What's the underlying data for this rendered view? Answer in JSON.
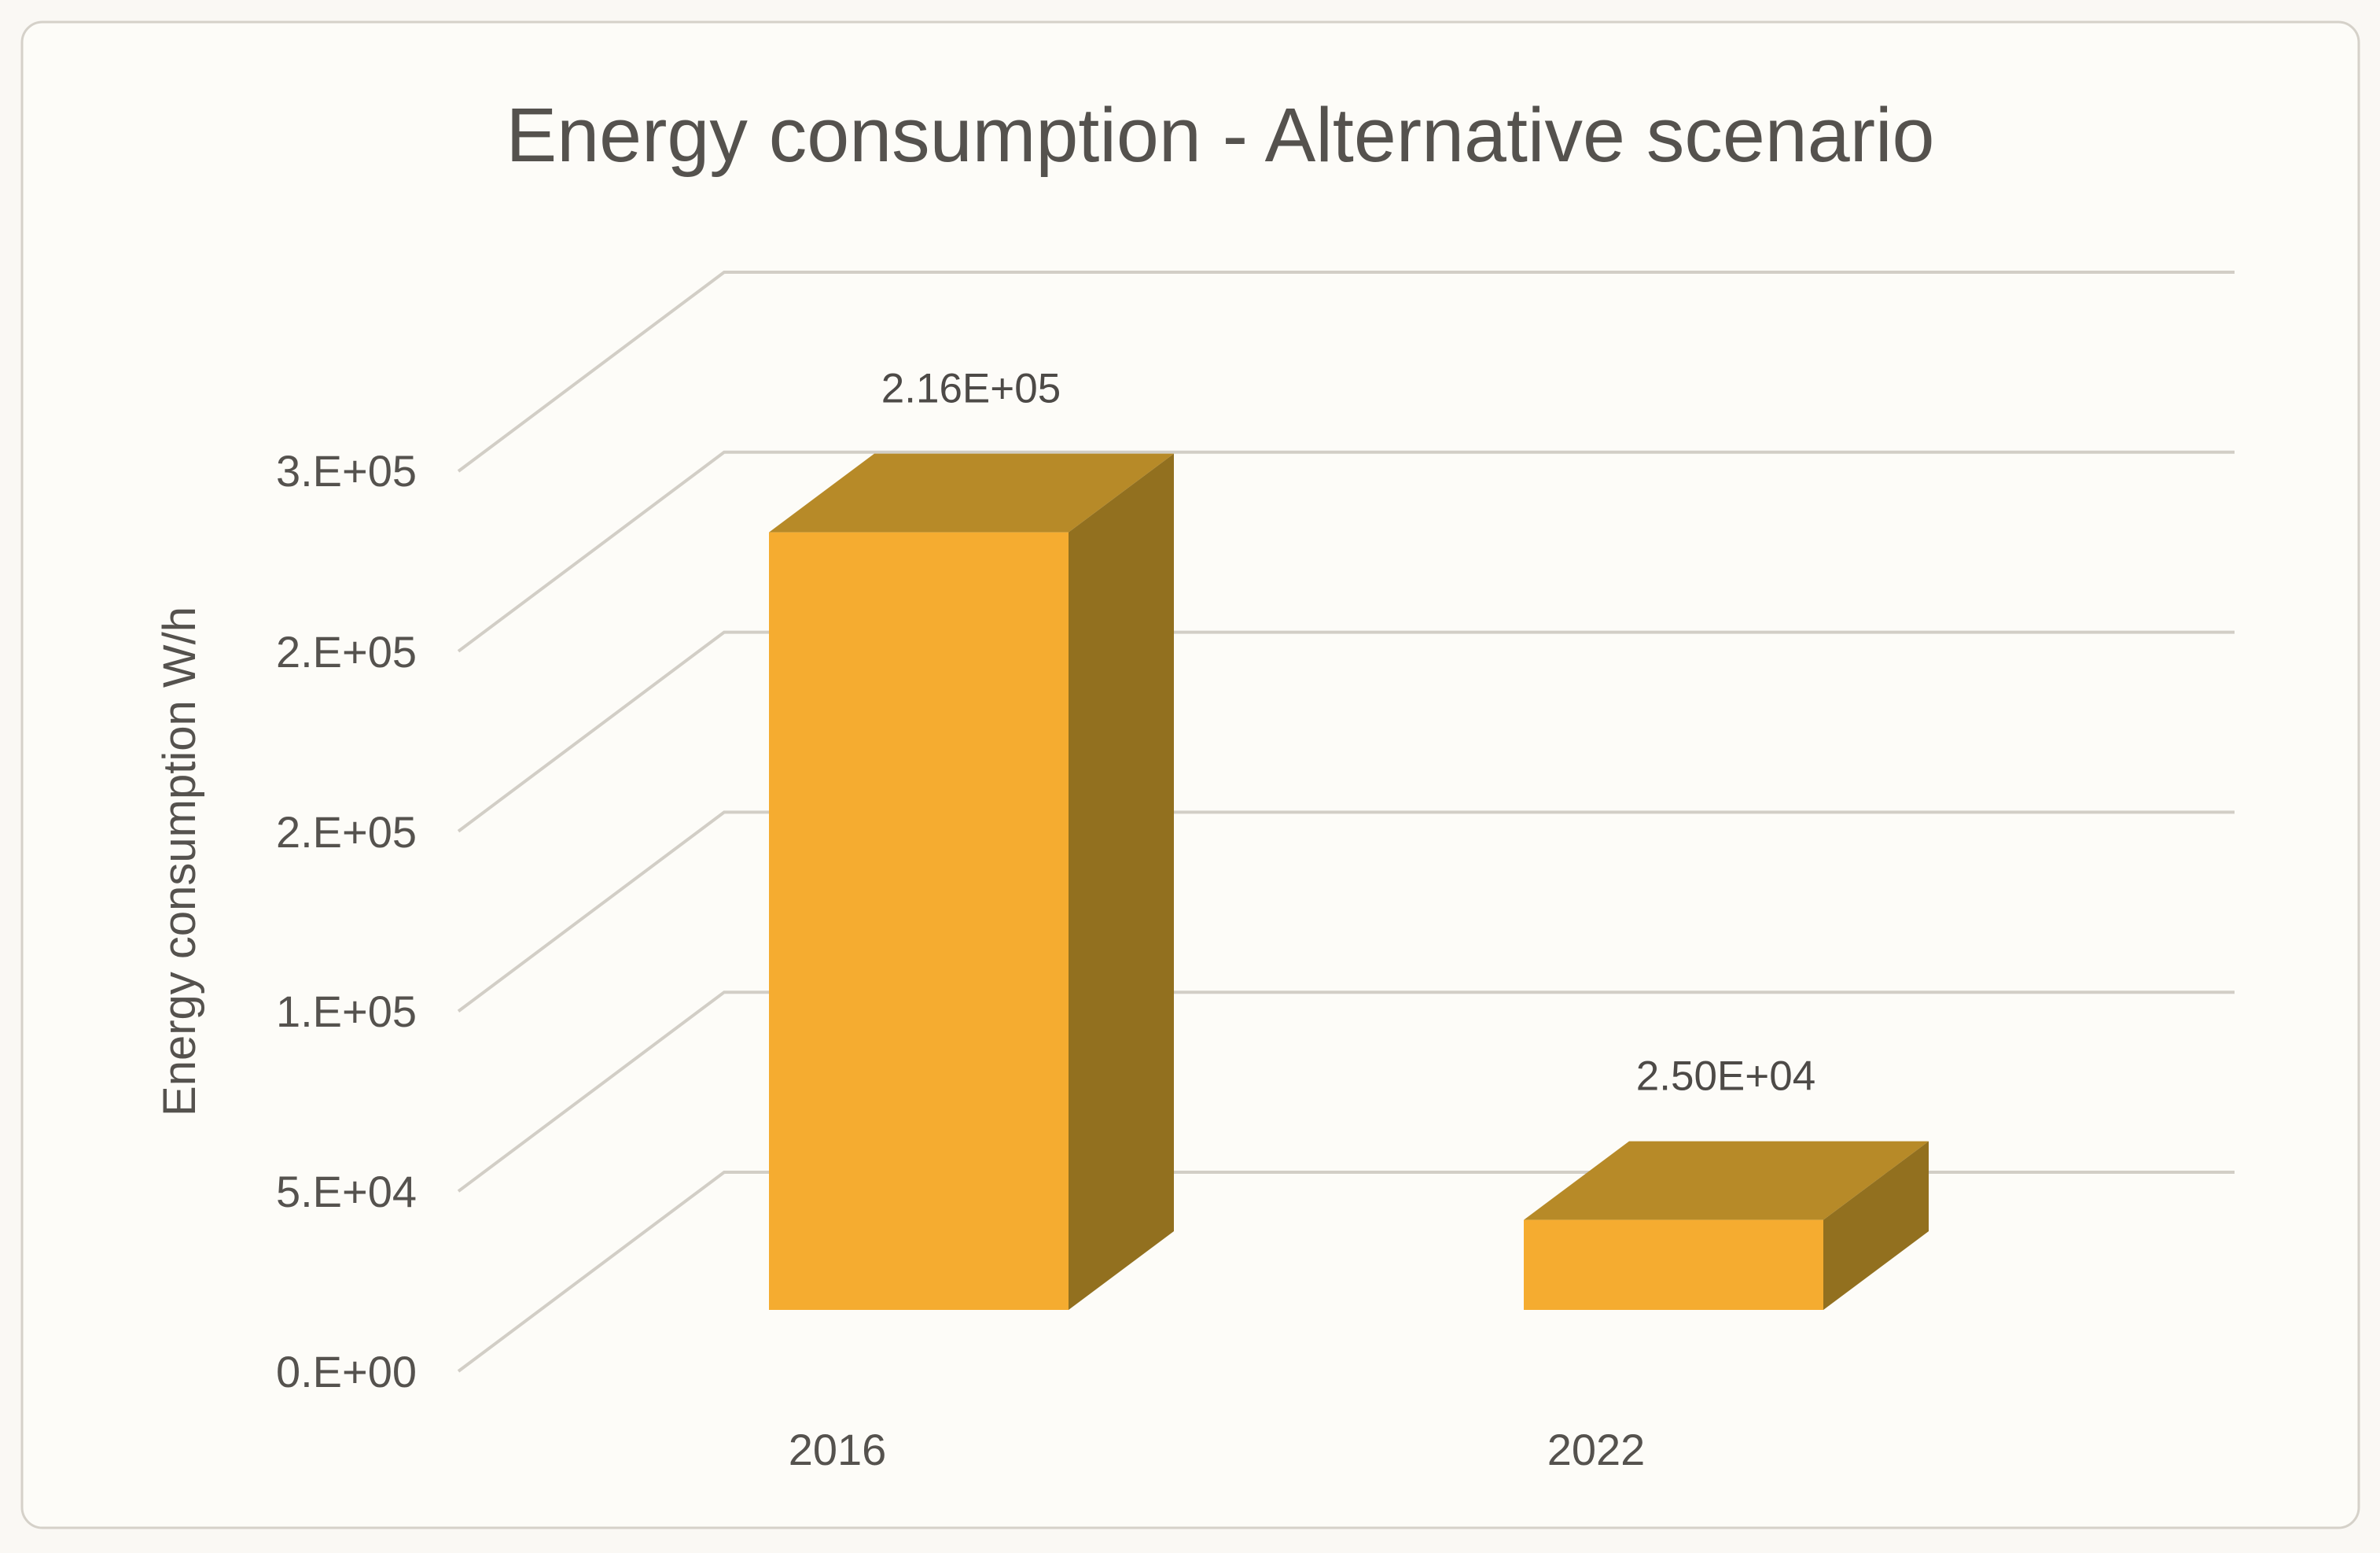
{
  "chart_data": {
    "type": "bar",
    "projection": "3d-column",
    "title": "Energy consumption - Alternative scenario",
    "ylabel": "Energy consumption W/h",
    "xlabel": "",
    "categories": [
      "2016",
      "2022"
    ],
    "values": [
      216000,
      25000
    ],
    "data_labels": [
      "2.16E+05",
      "2.50E+04"
    ],
    "y_ticks": [
      {
        "value": 0,
        "label": "0.E+00"
      },
      {
        "value": 50000,
        "label": "5.E+04"
      },
      {
        "value": 100000,
        "label": "1.E+05"
      },
      {
        "value": 150000,
        "label": "2.E+05"
      },
      {
        "value": 200000,
        "label": "2.E+05"
      },
      {
        "value": 250000,
        "label": "3.E+05"
      }
    ],
    "ylim": [
      0,
      250000
    ],
    "grid": true,
    "legend": false,
    "colors": {
      "bar_front": "#F5AC30",
      "bar_top": "#B78A28",
      "bar_side": "#92701F",
      "gridline": "#D2CEC6",
      "text": "#55524E",
      "background": "#FAF8F4",
      "border": "#D5D1C9"
    }
  }
}
